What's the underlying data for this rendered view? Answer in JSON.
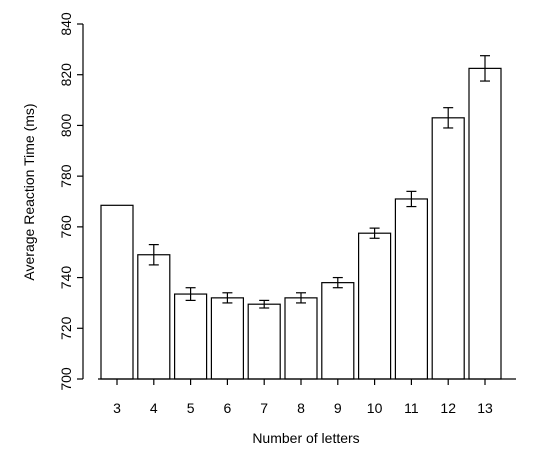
{
  "chart_data": {
    "type": "bar",
    "title": "",
    "xlabel": "Number of letters",
    "ylabel": "Average Reaction Time (ms)",
    "ylim": [
      700,
      840
    ],
    "yticks": [
      700,
      720,
      740,
      760,
      780,
      800,
      820,
      840
    ],
    "categories": [
      "3",
      "4",
      "5",
      "6",
      "7",
      "8",
      "9",
      "10",
      "11",
      "12",
      "13"
    ],
    "values": [
      768.5,
      749,
      733.5,
      732,
      729.5,
      732,
      738,
      757.5,
      771,
      803,
      822.5
    ],
    "error": [
      0,
      4,
      2.5,
      2,
      1.5,
      2,
      2,
      2,
      3,
      4,
      5
    ],
    "bar_fill": "#ffffff",
    "bar_stroke": "#000000",
    "grid": false,
    "legend": "none"
  }
}
